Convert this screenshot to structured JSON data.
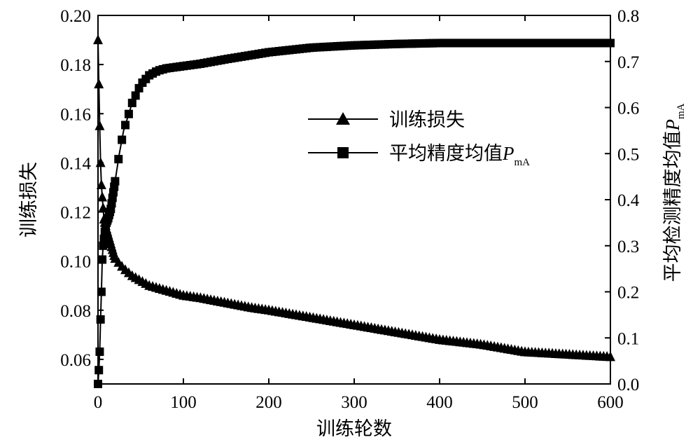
{
  "chart_data": {
    "type": "line",
    "xlabel": "训练轮数",
    "ylabel_left": "训练损失",
    "ylabel_right_prefix": "平均检测精度均值",
    "ylabel_right_var": "P",
    "ylabel_right_sub": "mA",
    "xlim": [
      0,
      600
    ],
    "ylim_left": [
      0.05,
      0.2
    ],
    "ylim_right": [
      0.0,
      0.8
    ],
    "x_ticks": [
      "0",
      "100",
      "200",
      "300",
      "400",
      "500",
      "600"
    ],
    "y_left_ticks": [
      "0.06",
      "0.08",
      "0.10",
      "0.12",
      "0.14",
      "0.16",
      "0.18",
      "0.20"
    ],
    "y_right_ticks": [
      "0.0",
      "0.1",
      "0.2",
      "0.3",
      "0.4",
      "0.5",
      "0.6",
      "0.7",
      "0.8"
    ],
    "grid": false,
    "legend_position": "center-right",
    "series": [
      {
        "name": "训练损失",
        "axis": "left",
        "marker": "triangle",
        "x": [
          0,
          1,
          2,
          3,
          4,
          5,
          7,
          10,
          15,
          20,
          30,
          40,
          50,
          60,
          70,
          80,
          90,
          100,
          120,
          150,
          180,
          200,
          250,
          300,
          350,
          400,
          450,
          500,
          550,
          600
        ],
        "values": [
          0.19,
          0.172,
          0.155,
          0.14,
          0.131,
          0.126,
          0.117,
          0.113,
          0.107,
          0.101,
          0.097,
          0.094,
          0.092,
          0.09,
          0.089,
          0.088,
          0.087,
          0.086,
          0.085,
          0.083,
          0.081,
          0.08,
          0.077,
          0.074,
          0.071,
          0.068,
          0.066,
          0.063,
          0.062,
          0.061
        ]
      },
      {
        "name": "平均精度均值",
        "name_var": "P",
        "name_sub": "mA",
        "axis": "right",
        "marker": "square",
        "x": [
          0,
          1,
          2,
          3,
          4,
          5,
          6,
          8,
          10,
          12,
          15,
          20,
          25,
          30,
          40,
          50,
          60,
          70,
          80,
          100,
          120,
          150,
          200,
          250,
          300,
          350,
          400,
          450,
          500,
          550,
          600
        ],
        "values": [
          0.0,
          0.03,
          0.07,
          0.14,
          0.2,
          0.27,
          0.3,
          0.33,
          0.35,
          0.36,
          0.38,
          0.44,
          0.5,
          0.55,
          0.61,
          0.65,
          0.67,
          0.68,
          0.685,
          0.69,
          0.695,
          0.705,
          0.72,
          0.73,
          0.735,
          0.738,
          0.74,
          0.74,
          0.74,
          0.74,
          0.74
        ]
      }
    ]
  }
}
